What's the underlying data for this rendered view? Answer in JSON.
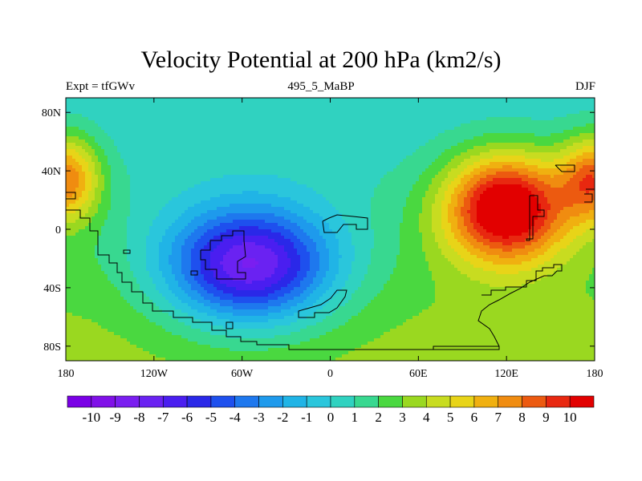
{
  "chart_data": {
    "type": "heatmap",
    "title": "Velocity Potential at 200 hPa (km2/s)",
    "subtitle_left": "Expt = tfGWv",
    "subtitle_center": "495_5_MaBP",
    "subtitle_right": "DJF",
    "x_ticks": [
      "180",
      "120W",
      "60W",
      "0",
      "60E",
      "120E",
      "180"
    ],
    "x_tick_values": [
      -180,
      -120,
      -60,
      0,
      60,
      120,
      180
    ],
    "y_ticks": [
      "80N",
      "40N",
      "0",
      "40S",
      "80S"
    ],
    "y_tick_values": [
      80,
      40,
      0,
      -40,
      -80
    ],
    "xlim": [
      -180,
      180
    ],
    "ylim": [
      -90,
      90
    ],
    "colorbar_labels": [
      "-10",
      "-9",
      "-8",
      "-7",
      "-6",
      "-5",
      "-4",
      "-3",
      "-2",
      "-1",
      "0",
      "1",
      "2",
      "3",
      "4",
      "5",
      "6",
      "7",
      "8",
      "9",
      "10"
    ],
    "colorbar_levels": [
      -10,
      -9,
      -8,
      -7,
      -6,
      -5,
      -4,
      -3,
      -2,
      -1,
      0,
      1,
      2,
      3,
      4,
      5,
      6,
      7,
      8,
      9,
      10
    ],
    "field_features": [
      {
        "kind": "minimum",
        "lon": -55,
        "lat": -25,
        "value": -10.5,
        "lon_spread": 55,
        "lat_spread": 38
      },
      {
        "kind": "maximum",
        "lon": 120,
        "lat": 15,
        "value": 11,
        "lon_spread": 40,
        "lat_spread": 35
      },
      {
        "kind": "maximum",
        "lon": -180,
        "lat": 35,
        "value": 7,
        "lon_spread": 22,
        "lat_spread": 28
      },
      {
        "kind": "maximum",
        "lon": 180,
        "lat": 35,
        "value": 7,
        "lon_spread": 22,
        "lat_spread": 28
      }
    ]
  },
  "colors": {
    "palette": [
      "#7a00e6",
      "#8010e8",
      "#7a1ef0",
      "#6a22f2",
      "#4a1ef0",
      "#2a28e8",
      "#1e50ee",
      "#1e78ee",
      "#1e9aec",
      "#20b4e6",
      "#2ac6dc",
      "#30d2c0",
      "#38d890",
      "#4ad840",
      "#9ad820",
      "#c8dc20",
      "#e8d418",
      "#f0b010",
      "#f08c10",
      "#ec5a10",
      "#e82810",
      "#e20000"
    ]
  }
}
